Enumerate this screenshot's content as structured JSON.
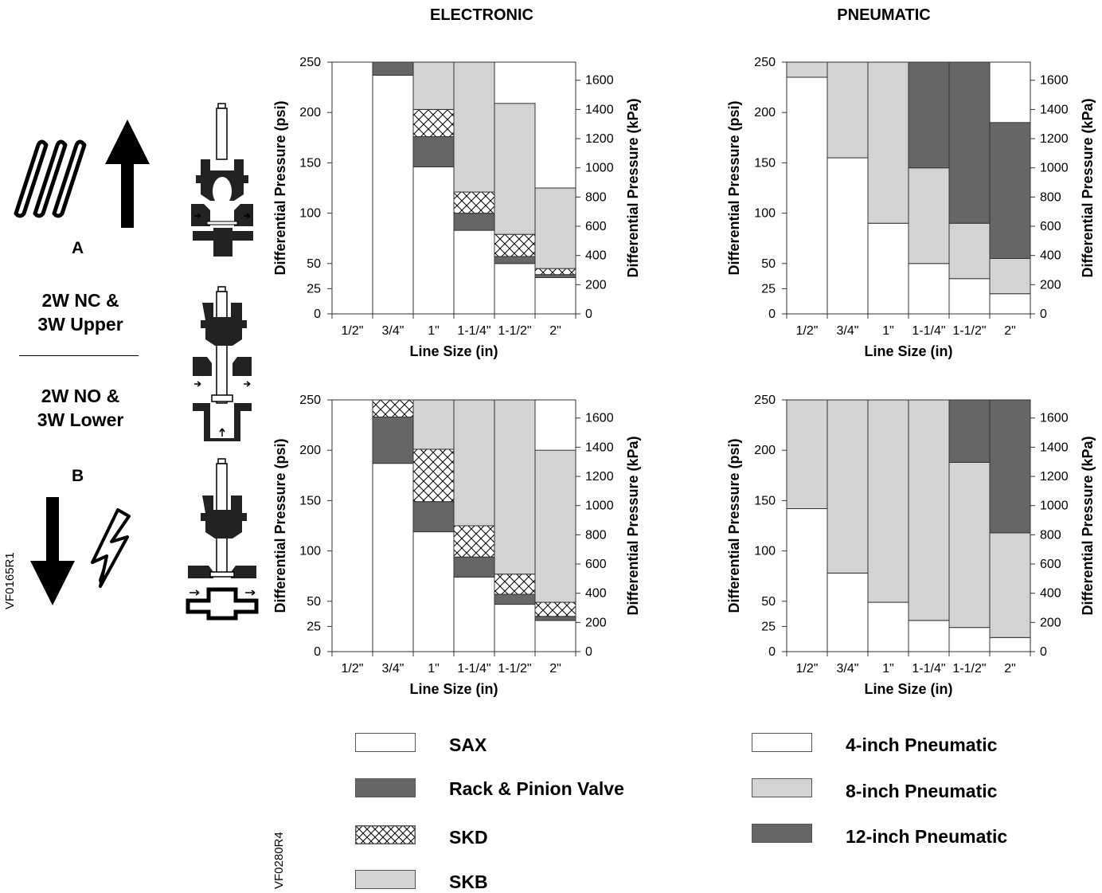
{
  "headings": {
    "electronic": "ELECTRONIC",
    "pneumatic": "PNEUMATIC"
  },
  "conditions": {
    "upper": "2W NC &\n3W Upper",
    "lower": "2W NO &\n3W Lower",
    "label_a": "A",
    "label_b": "B"
  },
  "codes": {
    "left": "VF0165R1",
    "bottom": "VF0280R4"
  },
  "colors": {
    "sax": "#ffffff",
    "rack_pinion": "#666666",
    "skd": "crosshatch",
    "skb": "#d2d3d5",
    "p4": "#ffffff",
    "p8": "#d2d3d5",
    "p12": "#666666"
  },
  "legend": {
    "electronic": [
      {
        "key": "sax",
        "label": "SAX"
      },
      {
        "key": "rack_pinion",
        "label": "Rack & Pinion Valve"
      },
      {
        "key": "skd",
        "label": "SKD"
      },
      {
        "key": "skb",
        "label": "SKB"
      }
    ],
    "pneumatic": [
      {
        "key": "p4",
        "label": "4-inch Pneumatic"
      },
      {
        "key": "p8",
        "label": "8-inch Pneumatic"
      },
      {
        "key": "p12",
        "label": "12-inch Pneumatic"
      }
    ]
  },
  "chart_data": [
    {
      "id": "elec_top",
      "type": "bar",
      "xlabel": "Line Size (in)",
      "ylabel": "Differential Pressure (psi)",
      "y2label": "Differential Pressure (kPa)",
      "categories": [
        "1/2\"",
        "3/4\"",
        "1\"",
        "1-1/4\"",
        "1-1/2\"",
        "2\""
      ],
      "yticks": [
        "0",
        "25",
        "50",
        "100",
        "150",
        "200",
        "250"
      ],
      "y2ticks": [
        "0",
        "200",
        "400",
        "600",
        "800",
        "1000",
        "1200",
        "1400",
        "1600"
      ],
      "ylim": [
        0,
        250
      ],
      "y2lim": [
        0,
        1724
      ],
      "series": [
        {
          "name": "SAX",
          "key": "sax",
          "values": [
            0,
            237,
            146,
            83,
            50,
            36
          ]
        },
        {
          "name": "Rack & Pinion Valve",
          "key": "rack_pinion",
          "values": [
            0,
            13,
            30,
            17,
            7,
            3
          ]
        },
        {
          "name": "SKD",
          "key": "skd",
          "values": [
            0,
            0,
            27,
            21,
            22,
            6
          ]
        },
        {
          "name": "SKB",
          "key": "skb",
          "values": [
            0,
            0,
            47,
            129,
            130,
            80
          ]
        }
      ]
    },
    {
      "id": "elec_bottom",
      "type": "bar",
      "xlabel": "Line Size (in)",
      "ylabel": "Differential Pressure (psi)",
      "y2label": "Differential Pressure (kPa)",
      "categories": [
        "1/2\"",
        "3/4\"",
        "1\"",
        "1-1/4\"",
        "1-1/2\"",
        "2\""
      ],
      "yticks": [
        "0",
        "25",
        "50",
        "100",
        "150",
        "200",
        "250"
      ],
      "y2ticks": [
        "0",
        "200",
        "400",
        "600",
        "800",
        "1000",
        "1200",
        "1400",
        "1600"
      ],
      "ylim": [
        0,
        250
      ],
      "y2lim": [
        0,
        1724
      ],
      "series": [
        {
          "name": "SAX",
          "key": "sax",
          "values": [
            0,
            187,
            119,
            74,
            47,
            31
          ]
        },
        {
          "name": "Rack & Pinion Valve",
          "key": "rack_pinion",
          "values": [
            0,
            46,
            30,
            20,
            10,
            4
          ]
        },
        {
          "name": "SKD",
          "key": "skd",
          "values": [
            0,
            17,
            52,
            31,
            20,
            14
          ]
        },
        {
          "name": "SKB",
          "key": "skb",
          "values": [
            0,
            0,
            49,
            125,
            173,
            151
          ]
        }
      ]
    },
    {
      "id": "pneu_top",
      "type": "bar",
      "xlabel": "Line Size (in)",
      "ylabel": "Differential Pressure (psi)",
      "y2label": "Differential Pressure (kPa)",
      "categories": [
        "1/2\"",
        "3/4\"",
        "1\"",
        "1-1/4\"",
        "1-1/2\"",
        "2\""
      ],
      "yticks": [
        "0",
        "25",
        "50",
        "100",
        "150",
        "200",
        "250"
      ],
      "y2ticks": [
        "0",
        "200",
        "400",
        "600",
        "800",
        "1000",
        "1200",
        "1400",
        "1600"
      ],
      "ylim": [
        0,
        250
      ],
      "y2lim": [
        0,
        1724
      ],
      "series": [
        {
          "name": "4-inch Pneumatic",
          "key": "p4",
          "values": [
            235,
            155,
            90,
            50,
            35,
            20
          ]
        },
        {
          "name": "8-inch Pneumatic",
          "key": "p8",
          "values": [
            15,
            95,
            160,
            95,
            55,
            35
          ]
        },
        {
          "name": "12-inch Pneumatic",
          "key": "p12",
          "values": [
            0,
            0,
            0,
            105,
            160,
            135
          ]
        }
      ]
    },
    {
      "id": "pneu_bottom",
      "type": "bar",
      "xlabel": "Line Size (in)",
      "ylabel": "Differential Pressure (psi)",
      "y2label": "Differential Pressure (kPa)",
      "categories": [
        "1/2\"",
        "3/4\"",
        "1\"",
        "1-1/4\"",
        "1-1/2\"",
        "2\""
      ],
      "yticks": [
        "0",
        "25",
        "50",
        "100",
        "150",
        "200",
        "250"
      ],
      "y2ticks": [
        "0",
        "200",
        "400",
        "600",
        "800",
        "1000",
        "1200",
        "1400",
        "1600"
      ],
      "ylim": [
        0,
        250
      ],
      "y2lim": [
        0,
        1724
      ],
      "series": [
        {
          "name": "4-inch Pneumatic",
          "key": "p4",
          "values": [
            142,
            78,
            49,
            31,
            24,
            14
          ]
        },
        {
          "name": "8-inch Pneumatic",
          "key": "p8",
          "values": [
            108,
            172,
            201,
            219,
            164,
            104
          ]
        },
        {
          "name": "12-inch Pneumatic",
          "key": "p12",
          "values": [
            0,
            0,
            0,
            0,
            62,
            132
          ]
        }
      ]
    }
  ]
}
